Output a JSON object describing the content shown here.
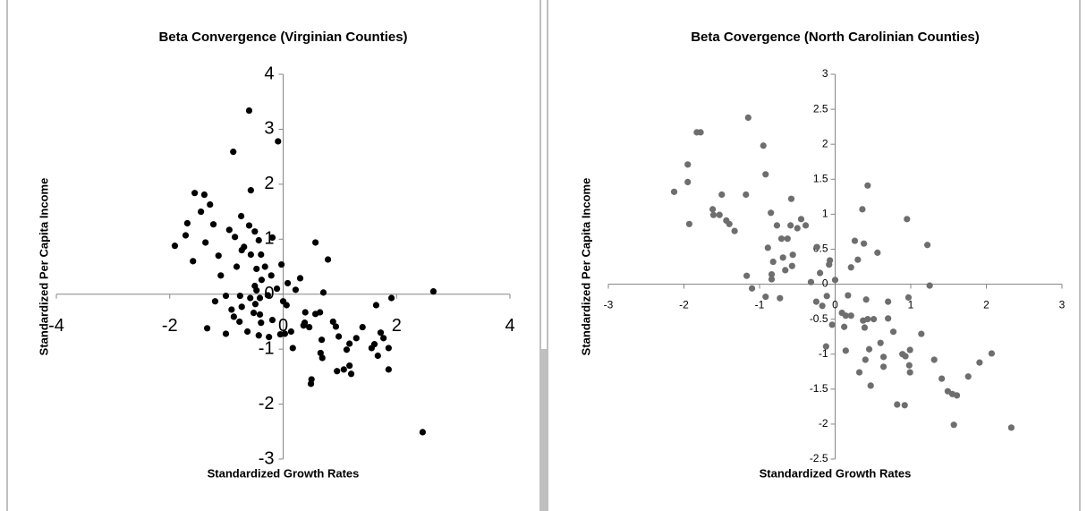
{
  "chart_data": [
    {
      "type": "scatter",
      "title": "Beta Convergence (Virginian Counties)",
      "xlabel": "Standardized Growth Rates",
      "ylabel": "Standardized Per Capita Income",
      "color": "#000000",
      "xlim": [
        -4,
        4
      ],
      "ylim": [
        -3,
        4
      ],
      "xticks": [
        -4,
        -2,
        0,
        2,
        4
      ],
      "yticks": [
        -3,
        -2,
        -1,
        0,
        1,
        2,
        3,
        4
      ],
      "x": [
        -0.6,
        -0.88,
        -0.09,
        -0.57,
        -1.56,
        -1.39,
        -1.29,
        -1.45,
        -1.69,
        -1.23,
        -0.74,
        -1.72,
        -1.91,
        -1.59,
        -1.37,
        -1.14,
        -0.95,
        -0.85,
        -0.6,
        -0.5,
        -0.43,
        -0.19,
        -0.69,
        -0.57,
        -0.39,
        -0.73,
        -0.32,
        -0.03,
        -1.1,
        -0.82,
        -0.47,
        -0.21,
        -0.11,
        -0.38,
        -0.5,
        -0.47,
        -1.01,
        -0.76,
        -0.58,
        -0.41,
        -0.27,
        -0.49,
        -0.73,
        -1.2,
        -0.87,
        -0.77,
        -0.52,
        -0.41,
        -0.91,
        -0.39,
        -0.19,
        -0.43,
        -0.25,
        -0.63,
        -1.01,
        -1.34,
        0.08,
        0,
        0.06,
        0.03,
        -0.05,
        0.14,
        0.17,
        0.22,
        0.3,
        0.36,
        0.39,
        0.46,
        0.38,
        0.57,
        0.57,
        0.71,
        0.79,
        0.65,
        0.5,
        0.49,
        0.68,
        0.66,
        0.69,
        0.88,
        0.93,
        0.98,
        0.95,
        1.07,
        1.17,
        1.2,
        1.17,
        1.12,
        1.29,
        1.4,
        1.56,
        1.61,
        1.64,
        1.72,
        1.77,
        1.67,
        1.86,
        1.86,
        1.91,
        2.65,
        2.46
      ],
      "values": [
        3.34,
        2.59,
        2.78,
        1.89,
        1.84,
        1.81,
        1.63,
        1.5,
        1.29,
        1.27,
        1.42,
        1.07,
        0.88,
        0.6,
        0.94,
        0.7,
        1.17,
        1.04,
        1.25,
        1.14,
        0.98,
        1.03,
        0.86,
        0.72,
        0.72,
        0.8,
        0.5,
        0.54,
        0.34,
        0.5,
        0.46,
        0.34,
        0.1,
        0.26,
        0.15,
        0.07,
        -0.03,
        -0.03,
        -0.07,
        -0.07,
        -0.02,
        -0.18,
        -0.23,
        -0.13,
        -0.41,
        -0.5,
        -0.34,
        -0.37,
        -0.28,
        -0.52,
        -0.47,
        -0.75,
        -0.78,
        -0.68,
        -0.72,
        -0.62,
        0.2,
        -0.13,
        -0.2,
        -0.72,
        -0.73,
        -0.68,
        -0.98,
        0.08,
        0.29,
        -0.57,
        -0.33,
        -0.6,
        -0.52,
        0.94,
        -0.36,
        0.03,
        0.63,
        -0.33,
        -1.55,
        -1.63,
        -0.83,
        -1.07,
        -1.16,
        -0.5,
        -0.59,
        -0.77,
        -1.4,
        -1.37,
        -1.3,
        -1.45,
        -0.9,
        -1.01,
        -0.8,
        -0.6,
        -0.98,
        -0.91,
        -0.2,
        -0.7,
        -0.8,
        -1.12,
        -0.98,
        -1.37,
        -0.07,
        0.05,
        -2.51
      ]
    },
    {
      "type": "scatter",
      "title": "Beta Covergence (North Carolinian Counties)",
      "xlabel": "Standardized Growth Rates",
      "ylabel": "Standardized Per Capita Income",
      "color": "#6e6e6e",
      "xlim": [
        -3,
        3
      ],
      "ylim": [
        -2.5,
        3
      ],
      "xticks": [
        -3,
        -2,
        -1,
        0,
        1,
        2,
        3
      ],
      "yticks": [
        -2.5,
        -2,
        -1.5,
        -1,
        -0.5,
        0,
        0.5,
        1,
        1.5,
        2,
        2.5,
        3
      ],
      "x": [
        -2.13,
        -1.95,
        -1.95,
        -1.83,
        -1.78,
        -1.93,
        -1.62,
        -1.61,
        -1.53,
        -1.5,
        -1.44,
        -1.4,
        -1.33,
        -1.15,
        -1.18,
        -1.17,
        -1.1,
        -0.95,
        -0.92,
        -0.89,
        -0.85,
        -0.84,
        -0.84,
        -0.82,
        -0.92,
        -0.73,
        -0.77,
        -0.71,
        -0.63,
        -0.69,
        -0.66,
        -0.58,
        -0.59,
        -0.57,
        -0.56,
        -0.5,
        -0.45,
        -0.39,
        -0.32,
        -0.24,
        -0.2,
        -0.17,
        -0.25,
        -0.11,
        -0.07,
        -0.08,
        -0.12,
        0,
        -0.04,
        0.09,
        0.14,
        0.12,
        0.14,
        0.17,
        0.21,
        0.21,
        0.26,
        0.3,
        0.32,
        0.36,
        0.38,
        0.37,
        0.39,
        0.4,
        0.41,
        0.43,
        0.43,
        0.45,
        0.47,
        0.51,
        0.56,
        0.6,
        0.64,
        0.64,
        0.7,
        0.7,
        0.77,
        0.82,
        0.89,
        0.93,
        0.92,
        0.95,
        0.97,
        0.99,
        0.98,
        0.99,
        1.14,
        1.22,
        1.25,
        1.31,
        1.41,
        1.49,
        1.55,
        1.61,
        1.57,
        1.76,
        1.91,
        2.07,
        2.33
      ],
      "values": [
        1.32,
        1.71,
        1.46,
        2.17,
        2.17,
        0.86,
        1.07,
        0.99,
        0.99,
        1.28,
        0.91,
        0.86,
        0.76,
        2.38,
        1.28,
        0.12,
        -0.06,
        1.98,
        1.57,
        0.52,
        1.02,
        0.14,
        0.07,
        0.32,
        -0.18,
        -0.2,
        0.84,
        0.65,
        0.65,
        0.38,
        0.2,
        1.22,
        0.84,
        0.26,
        0.42,
        0.8,
        0.93,
        0.84,
        0.03,
        0.53,
        0.16,
        -0.31,
        -0.25,
        -0.17,
        0.34,
        0.28,
        -0.89,
        0.06,
        -0.58,
        -0.41,
        -0.45,
        -0.61,
        -0.95,
        -0.16,
        0.24,
        -0.45,
        0.62,
        0.35,
        -1.26,
        1.07,
        0.58,
        -0.52,
        -0.62,
        -1.08,
        -0.22,
        1.41,
        -0.5,
        -0.93,
        -1.45,
        -0.5,
        0.45,
        -0.84,
        -1.04,
        -1.18,
        -0.25,
        -0.49,
        -0.68,
        -1.72,
        -1.0,
        -1.03,
        -1.73,
        0.93,
        -0.19,
        -0.94,
        -1.16,
        -1.26,
        -0.71,
        0.56,
        -0.02,
        -1.08,
        -1.35,
        -1.53,
        -1.57,
        -1.59,
        -2.01,
        -1.32,
        -1.12,
        -0.99,
        -2.05
      ]
    }
  ]
}
